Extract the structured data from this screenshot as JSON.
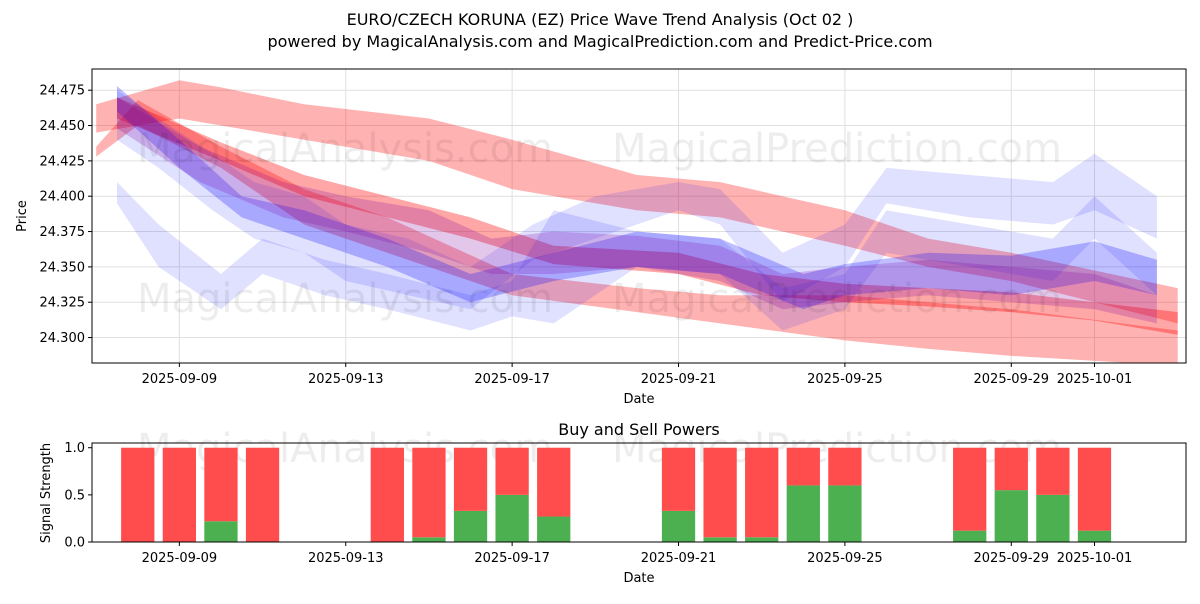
{
  "title_line1": "EURO/CZECH KORUNA (EZ) Price Wave Trend Analysis (Oct 02 )",
  "title_line2": "powered by MagicalAnalysis.com and MagicalPrediction.com and Predict-Price.com",
  "watermarks": [
    "MagicalAnalysis.com",
    "MagicalPrediction.com"
  ],
  "colors": {
    "red_band": "#ff0000",
    "blue_band": "#0000ff",
    "buy": "#4caf50",
    "sell": "#ff4d4d",
    "grid": "#e0e0e0"
  },
  "chart_data": [
    {
      "type": "area",
      "title": "",
      "xlabel": "Date",
      "ylabel": "Price",
      "x_day_range": [
        -2.1,
        24.2
      ],
      "ylim": [
        24.282,
        24.49
      ],
      "yticks": [
        24.3,
        24.325,
        24.35,
        24.375,
        24.4,
        24.425,
        24.45,
        24.475
      ],
      "ytick_labels": [
        "24.300",
        "24.325",
        "24.350",
        "24.375",
        "24.400",
        "24.425",
        "24.450",
        "24.475"
      ],
      "xticks": [
        {
          "day": 0,
          "label": "2025-09-09"
        },
        {
          "day": 4,
          "label": "2025-09-13"
        },
        {
          "day": 8,
          "label": "2025-09-17"
        },
        {
          "day": 12,
          "label": "2025-09-21"
        },
        {
          "day": 16,
          "label": "2025-09-25"
        },
        {
          "day": 20,
          "label": "2025-09-29"
        },
        {
          "day": 22,
          "label": "2025-10-01"
        }
      ],
      "grid": true,
      "series": [
        {
          "name": "red-band-upper",
          "color": "#ff0000",
          "opacity": 0.3,
          "x": [
            -2,
            0,
            1,
            3,
            6,
            8,
            11,
            13,
            16,
            18,
            20,
            24
          ],
          "upper": [
            24.465,
            24.482,
            24.477,
            24.465,
            24.455,
            24.44,
            24.415,
            24.41,
            24.39,
            24.37,
            24.36,
            24.335
          ],
          "lower": [
            24.445,
            24.455,
            24.45,
            24.44,
            24.425,
            24.405,
            24.39,
            24.385,
            24.365,
            24.35,
            24.34,
            24.31
          ]
        },
        {
          "name": "red-band-lower",
          "color": "#ff0000",
          "opacity": 0.3,
          "x": [
            -2,
            -1,
            1,
            3,
            5,
            8,
            11,
            13,
            16,
            18,
            20,
            24
          ],
          "upper": [
            24.435,
            24.468,
            24.435,
            24.405,
            24.385,
            24.345,
            24.335,
            24.33,
            24.33,
            24.325,
            24.32,
            24.305
          ],
          "lower": [
            24.428,
            24.45,
            24.42,
            24.38,
            24.36,
            24.33,
            24.318,
            24.31,
            24.298,
            24.292,
            24.287,
            24.28
          ]
        },
        {
          "name": "red-trend",
          "color": "#ff0000",
          "opacity": 0.35,
          "x": [
            -1.5,
            1,
            3,
            5,
            7,
            9,
            12,
            14,
            16,
            18,
            20,
            22,
            24
          ],
          "upper": [
            24.47,
            24.438,
            24.415,
            24.4,
            24.385,
            24.365,
            24.36,
            24.345,
            24.338,
            24.335,
            24.332,
            24.325,
            24.318
          ],
          "lower": [
            24.455,
            24.425,
            24.4,
            24.385,
            24.37,
            24.352,
            24.345,
            24.33,
            24.325,
            24.322,
            24.318,
            24.312,
            24.302
          ]
        },
        {
          "name": "blue-band-1",
          "color": "#0000ff",
          "opacity": 0.12,
          "x": [
            -1.5,
            -0.5,
            0.8,
            1.8,
            3,
            4,
            5.5,
            7,
            8.5,
            10,
            12,
            13,
            14.5,
            16,
            17,
            19,
            21,
            22,
            23.5
          ],
          "upper": [
            24.475,
            24.455,
            24.43,
            24.41,
            24.4,
            24.38,
            24.37,
            24.35,
            24.38,
            24.4,
            24.41,
            24.405,
            24.36,
            24.38,
            24.42,
            24.415,
            24.41,
            24.43,
            24.4
          ],
          "lower": [
            24.44,
            24.42,
            24.39,
            24.37,
            24.36,
            24.34,
            24.33,
            24.32,
            24.355,
            24.37,
            24.39,
            24.38,
            24.325,
            24.35,
            24.395,
            24.385,
            24.38,
            24.39,
            24.37
          ]
        },
        {
          "name": "blue-band-2",
          "color": "#0000ff",
          "opacity": 0.12,
          "x": [
            -1.5,
            -0.5,
            1,
            2,
            3.5,
            5,
            7,
            8,
            9,
            11,
            13,
            14.5,
            16,
            17,
            19,
            21,
            22,
            23.5
          ],
          "upper": [
            24.41,
            24.38,
            24.345,
            24.37,
            24.355,
            24.345,
            24.33,
            24.34,
            24.39,
            24.375,
            24.37,
            24.335,
            24.345,
            24.39,
            24.38,
            24.37,
            24.4,
            24.36
          ],
          "lower": [
            24.395,
            24.35,
            24.32,
            24.345,
            24.33,
            24.32,
            24.305,
            24.315,
            24.31,
            24.35,
            24.345,
            24.305,
            24.32,
            24.36,
            24.35,
            24.34,
            24.37,
            24.33
          ]
        },
        {
          "name": "blue-trend",
          "color": "#0000ff",
          "opacity": 0.25,
          "x": [
            -1.5,
            0,
            1.5,
            3,
            5,
            7,
            9,
            11,
            13,
            15,
            16,
            18,
            20,
            22,
            23.5
          ],
          "upper": [
            24.478,
            24.44,
            24.4,
            24.39,
            24.37,
            24.345,
            24.36,
            24.375,
            24.37,
            24.345,
            24.352,
            24.36,
            24.358,
            24.368,
            24.355
          ],
          "lower": [
            24.46,
            24.42,
            24.385,
            24.37,
            24.35,
            24.325,
            24.34,
            24.35,
            24.345,
            24.32,
            24.33,
            24.335,
            24.33,
            24.34,
            24.33
          ]
        },
        {
          "name": "purple-mix",
          "color": "#8000a0",
          "opacity": 0.22,
          "x": [
            -1.5,
            0.5,
            2.5,
            4,
            6,
            7.5,
            9,
            11,
            13,
            14.5,
            16,
            18,
            20,
            22,
            23.5
          ],
          "upper": [
            24.47,
            24.435,
            24.41,
            24.4,
            24.39,
            24.37,
            24.375,
            24.372,
            24.365,
            24.345,
            24.35,
            24.355,
            24.35,
            24.345,
            24.33
          ],
          "lower": [
            24.448,
            24.41,
            24.385,
            24.375,
            24.36,
            24.345,
            24.345,
            24.35,
            24.34,
            24.32,
            24.325,
            24.33,
            24.325,
            24.32,
            24.31
          ]
        }
      ]
    },
    {
      "type": "bar",
      "title": "Buy and Sell Powers",
      "xlabel": "Date",
      "ylabel": "Signal Strength",
      "x_day_range": [
        -2.1,
        24.2
      ],
      "ylim": [
        0,
        1.05
      ],
      "yticks": [
        0.0,
        0.5,
        1.0
      ],
      "ytick_labels": [
        "0.0",
        "0.5",
        "1.0"
      ],
      "xticks": [
        {
          "day": 0,
          "label": "2025-09-09"
        },
        {
          "day": 4,
          "label": "2025-09-13"
        },
        {
          "day": 8,
          "label": "2025-09-17"
        },
        {
          "day": 12,
          "label": "2025-09-21"
        },
        {
          "day": 16,
          "label": "2025-09-25"
        },
        {
          "day": 20,
          "label": "2025-09-29"
        },
        {
          "day": 22,
          "label": "2025-10-01"
        }
      ],
      "categories": [
        "2025-09-08",
        "2025-09-09",
        "2025-09-10",
        "2025-09-11",
        "2025-09-14",
        "2025-09-15",
        "2025-09-16",
        "2025-09-17",
        "2025-09-18",
        "2025-09-21",
        "2025-09-22",
        "2025-09-23",
        "2025-09-24",
        "2025-09-25",
        "2025-09-28",
        "2025-09-29",
        "2025-09-30",
        "2025-10-01"
      ],
      "day_offsets": [
        -1,
        0,
        1,
        2,
        5,
        6,
        7,
        8,
        9,
        12,
        13,
        14,
        15,
        16,
        19,
        20,
        21,
        22
      ],
      "series": [
        {
          "name": "Buy",
          "color": "#4caf50",
          "values": [
            0.0,
            0.0,
            0.22,
            0.0,
            0.0,
            0.05,
            0.33,
            0.5,
            0.27,
            0.33,
            0.05,
            0.05,
            0.6,
            0.6,
            0.12,
            0.55,
            0.5,
            0.12
          ]
        },
        {
          "name": "Sell",
          "color": "#ff4d4d",
          "values": [
            1.0,
            1.0,
            0.78,
            1.0,
            1.0,
            0.95,
            0.67,
            0.5,
            0.73,
            0.67,
            0.95,
            0.95,
            0.4,
            0.4,
            0.88,
            0.45,
            0.5,
            0.88
          ]
        }
      ]
    }
  ]
}
